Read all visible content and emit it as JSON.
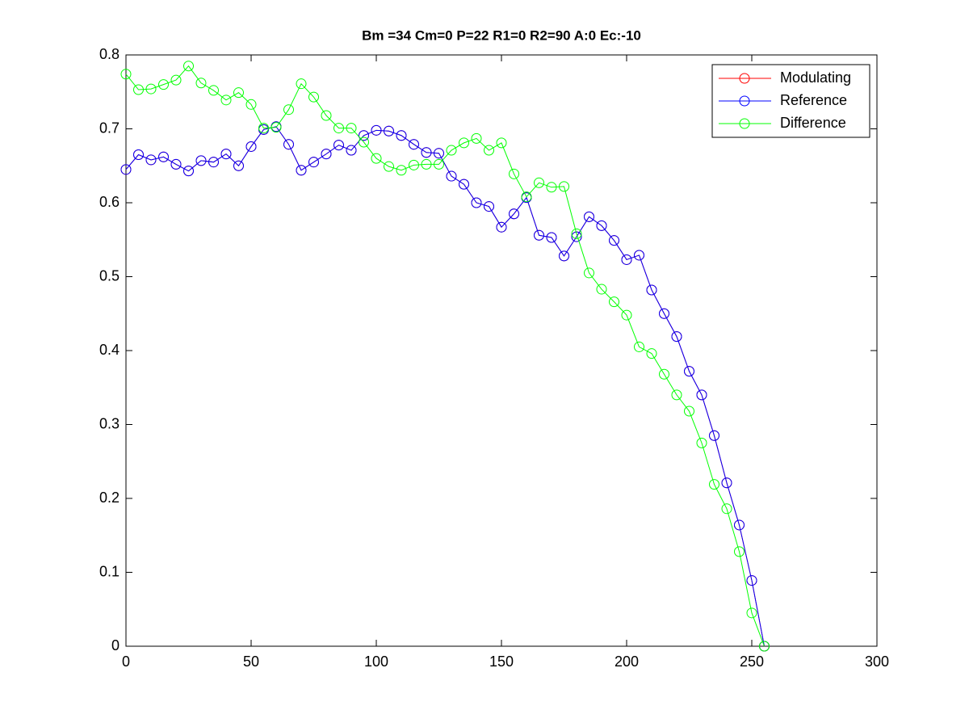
{
  "chart_data": {
    "type": "line",
    "title": "Bm =34  Cm=0  P=22  R1=0  R2=90  A:0  Ec:-10",
    "x": [
      0,
      5,
      10,
      15,
      20,
      25,
      30,
      35,
      40,
      45,
      50,
      55,
      60,
      65,
      70,
      75,
      80,
      85,
      90,
      95,
      100,
      105,
      110,
      115,
      120,
      125,
      130,
      135,
      140,
      145,
      150,
      155,
      160,
      165,
      170,
      175,
      180,
      185,
      190,
      195,
      200,
      205,
      210,
      215,
      220,
      225,
      230,
      235,
      240,
      245,
      250,
      255
    ],
    "series": [
      {
        "name": "Modulating",
        "color": "#ff0000",
        "values": [
          0.645,
          0.665,
          0.658,
          0.662,
          0.652,
          0.643,
          0.657,
          0.655,
          0.666,
          0.65,
          0.676,
          0.699,
          0.703,
          0.679,
          0.644,
          0.655,
          0.666,
          0.678,
          0.671,
          0.691,
          0.698,
          0.697,
          0.691,
          0.679,
          0.668,
          0.667,
          0.636,
          0.625,
          0.6,
          0.595,
          0.567,
          0.585,
          0.607,
          0.556,
          0.553,
          0.528,
          0.554,
          0.581,
          0.569,
          0.549,
          0.523,
          0.529,
          0.482,
          0.45,
          0.419,
          0.372,
          0.34,
          0.285,
          0.221,
          0.164,
          0.089,
          0
        ]
      },
      {
        "name": "Reference",
        "color": "#0000ff",
        "values": [
          0.645,
          0.665,
          0.658,
          0.662,
          0.652,
          0.643,
          0.657,
          0.655,
          0.666,
          0.65,
          0.676,
          0.699,
          0.703,
          0.679,
          0.644,
          0.655,
          0.666,
          0.678,
          0.671,
          0.691,
          0.698,
          0.697,
          0.691,
          0.679,
          0.668,
          0.667,
          0.636,
          0.625,
          0.6,
          0.595,
          0.567,
          0.585,
          0.607,
          0.556,
          0.553,
          0.528,
          0.554,
          0.581,
          0.569,
          0.549,
          0.523,
          0.529,
          0.482,
          0.45,
          0.419,
          0.372,
          0.34,
          0.285,
          0.221,
          0.164,
          0.089,
          0
        ]
      },
      {
        "name": "Difference",
        "color": "#00ff00",
        "values": [
          0.774,
          0.753,
          0.754,
          0.76,
          0.766,
          0.785,
          0.762,
          0.752,
          0.739,
          0.749,
          0.733,
          0.701,
          0.702,
          0.726,
          0.761,
          0.743,
          0.718,
          0.701,
          0.701,
          0.682,
          0.66,
          0.649,
          0.644,
          0.651,
          0.652,
          0.652,
          0.671,
          0.681,
          0.687,
          0.671,
          0.681,
          0.639,
          0.608,
          0.627,
          0.621,
          0.622,
          0.558,
          0.505,
          0.483,
          0.466,
          0.448,
          0.405,
          0.396,
          0.368,
          0.34,
          0.318,
          0.275,
          0.219,
          0.186,
          0.128,
          0.045,
          0
        ]
      }
    ],
    "xlim": [
      0,
      300
    ],
    "xticks": [
      0,
      50,
      100,
      150,
      200,
      250,
      300
    ],
    "ylim": [
      0,
      0.8
    ],
    "yticks": [
      0,
      0.1,
      0.2,
      0.3,
      0.4,
      0.5,
      0.6,
      0.7,
      0.8
    ],
    "grid": false,
    "legend": "top-right",
    "marker": "circle"
  }
}
